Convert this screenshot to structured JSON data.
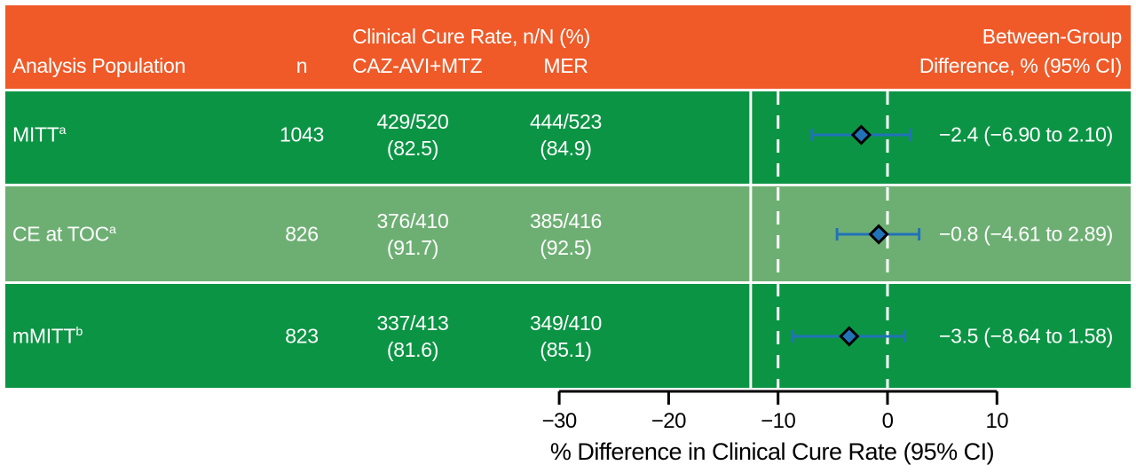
{
  "colors": {
    "header_bg": "#EF5A28",
    "row_dark_green": "#0B9444",
    "row_light_green": "#6DAF73",
    "text_white": "#FFFFFF",
    "marker_blue": "#2272B8",
    "marker_outline": "#000000",
    "reference_line_white": "#FFFFFF",
    "axis_black": "#000000"
  },
  "header": {
    "analysis_population": "Analysis Population",
    "n": "n",
    "clinical_cure_rate": "Clinical Cure Rate, n/N (%)",
    "caz_avi_mtz": "CAZ-AVI+MTZ",
    "mer": "MER",
    "between_group_line1": "Between-Group",
    "between_group_line2": "Difference, % (95% CI)"
  },
  "table": {
    "rows": [
      {
        "population": "MITT",
        "footnote": "a",
        "n": "1043",
        "caz_n": "429/520",
        "caz_pct": "(82.5)",
        "mer_n": "444/523",
        "mer_pct": "(84.9)",
        "difference": "−2.4 (−6.90 to 2.10)"
      },
      {
        "population": "CE at TOC",
        "footnote": "a",
        "n": "826",
        "caz_n": "376/410",
        "caz_pct": "(91.7)",
        "mer_n": "385/416",
        "mer_pct": "(92.5)",
        "difference": "−0.8 (−4.61 to 2.89)"
      },
      {
        "population": "mMITT",
        "footnote": "b",
        "n": "823",
        "caz_n": "337/413",
        "caz_pct": "(81.6)",
        "mer_n": "349/410",
        "mer_pct": "(85.1)",
        "difference": "−3.5 (−8.64 to 1.58)"
      }
    ]
  },
  "chart_data": {
    "type": "scatter",
    "subtype": "forest-plot",
    "series": [
      {
        "name": "MITT",
        "estimate": -2.4,
        "ci_low": -6.9,
        "ci_high": 2.1
      },
      {
        "name": "CE at TOC",
        "estimate": -0.8,
        "ci_low": -4.61,
        "ci_high": 2.89
      },
      {
        "name": "mMITT",
        "estimate": -3.5,
        "ci_low": -8.64,
        "ci_high": 1.58
      }
    ],
    "xlabel": "% Difference in Clinical Cure Rate (95% CI)",
    "xlim": [
      -30,
      10
    ],
    "x_ticks": [
      -30,
      -20,
      -10,
      0,
      10
    ],
    "x_tick_labels": [
      "−30",
      "−20",
      "−10",
      "0",
      "10"
    ],
    "reference_lines": [
      {
        "value": -12.5,
        "style": "solid"
      },
      {
        "value": -10,
        "style": "dashed"
      },
      {
        "value": 0,
        "style": "dashed"
      }
    ],
    "grid": false,
    "legend": false
  }
}
